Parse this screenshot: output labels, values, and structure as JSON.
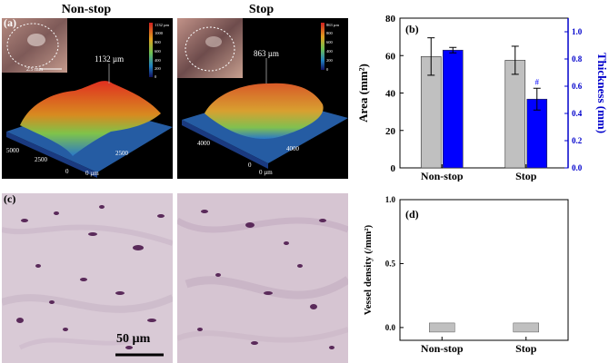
{
  "panel_a": {
    "label": "(a)",
    "left": {
      "title": "Non-stop",
      "height_label": "1132 µm",
      "inset_scale": "2.5 mm",
      "colorbar_ticks": [
        "1132 µm",
        "1000",
        "800",
        "600",
        "400",
        "200",
        "0"
      ],
      "axis_labels": [
        "5000",
        "2500",
        "0",
        "0 µm",
        "2500"
      ]
    },
    "right": {
      "title": "Stop",
      "height_label": "863 µm",
      "colorbar_ticks": [
        "863 µm",
        "800",
        "600",
        "400",
        "200",
        "0"
      ],
      "axis_labels": [
        "4000",
        "0",
        "0 µm",
        "4000"
      ]
    }
  },
  "panel_c": {
    "label": "(c)",
    "scale_bar": "50 µm"
  },
  "colors": {
    "gray_bar": "#c0c0c0",
    "blue_bar": "#0000ff",
    "right_axis": "#0000cc"
  },
  "chart_data": [
    {
      "panel": "(b)",
      "type": "bar",
      "categories": [
        "Non-stop",
        "Stop"
      ],
      "series": [
        {
          "axis": "left",
          "values": [
            59.5,
            57.5
          ],
          "errors": [
            10,
            7.5
          ],
          "color": "#c0c0c0"
        },
        {
          "axis": "right",
          "values": [
            0.865,
            0.505
          ],
          "errors": [
            0.02,
            0.08
          ],
          "color": "#0000ff"
        }
      ],
      "annotations": [
        {
          "category": "Stop",
          "series": 1,
          "text": "#"
        }
      ],
      "ylabel": "Area (mm²)",
      "ylim": [
        0,
        80
      ],
      "yticks": [
        0,
        20,
        40,
        60,
        80
      ],
      "y2label": "Thickness (mm)",
      "y2lim": [
        0,
        1.1
      ],
      "y2ticks": [
        "0.0",
        "0.2",
        "0.4",
        "0.6",
        "0.8",
        "1.0"
      ],
      "grid": false
    },
    {
      "panel": "(d)",
      "type": "bar",
      "categories": [
        "Non-stop",
        "Stop"
      ],
      "values": [
        0,
        0
      ],
      "ylabel": "Vessel density (/mm²)",
      "ylim": [
        -0.1,
        1.0
      ],
      "yticks": [
        "0.0",
        "0.5",
        "1.0"
      ],
      "grid": false
    }
  ]
}
